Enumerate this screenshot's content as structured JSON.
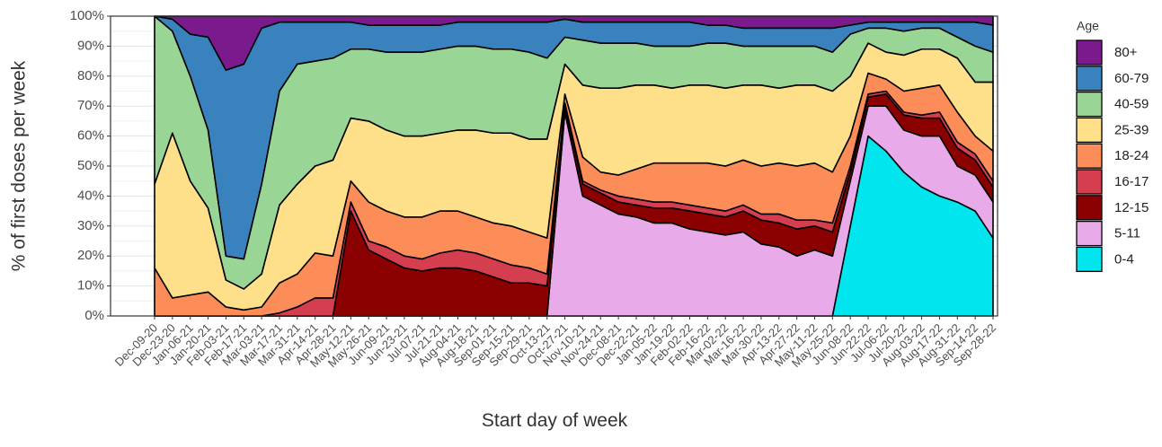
{
  "chart_data": {
    "type": "stacked_area",
    "x_label": "Start day of week",
    "y_label": "% of first doses per week",
    "legend_title": "Age",
    "legend_position": "right",
    "grid": true,
    "ylim": [
      0,
      100
    ],
    "yticks": [
      {
        "value": 0,
        "label": "0%"
      },
      {
        "value": 10,
        "label": "10%"
      },
      {
        "value": 20,
        "label": "20%"
      },
      {
        "value": 30,
        "label": "30%"
      },
      {
        "value": 40,
        "label": "40%"
      },
      {
        "value": 50,
        "label": "50%"
      },
      {
        "value": 60,
        "label": "60%"
      },
      {
        "value": 70,
        "label": "70%"
      },
      {
        "value": 80,
        "label": "80%"
      },
      {
        "value": 90,
        "label": "90%"
      },
      {
        "value": 100,
        "label": "100%"
      }
    ],
    "categories": [
      "Dec-09-20",
      "Dec-23-20",
      "Jan-06-21",
      "Jan-20-21",
      "Feb-03-21",
      "Feb-17-21",
      "Mar-03-21",
      "Mar-17-21",
      "Mar-31-21",
      "Apr-14-21",
      "Apr-28-21",
      "May-12-21",
      "May-26-21",
      "Jun-09-21",
      "Jun-23-21",
      "Jul-07-21",
      "Jul-21-21",
      "Aug-04-21",
      "Aug-18-21",
      "Sep-01-21",
      "Sep-15-21",
      "Sep-29-21",
      "Oct-13-21",
      "Oct-27-21",
      "Nov-10-21",
      "Nov-24-21",
      "Dec-08-21",
      "Dec-22-21",
      "Jan-05-22",
      "Jan-19-22",
      "Feb-02-22",
      "Feb-16-22",
      "Mar-02-22",
      "Mar-16-22",
      "Mar-30-22",
      "Apr-13-22",
      "Apr-27-22",
      "May-11-22",
      "May-25-22",
      "Jun-08-22",
      "Jun-22-22",
      "Jul-06-22",
      "Jul-20-22",
      "Aug-03-22",
      "Aug-17-22",
      "Aug-31-22",
      "Sep-14-22",
      "Sep-28-22"
    ],
    "series": [
      {
        "name": "0-4",
        "color": "#00e5ee",
        "values": [
          0,
          0,
          0,
          0,
          0,
          0,
          0,
          0,
          0,
          0,
          0,
          0,
          0,
          0,
          0,
          0,
          0,
          0,
          0,
          0,
          0,
          0,
          0,
          0,
          0,
          0,
          0,
          0,
          0,
          0,
          0,
          0,
          0,
          0,
          0,
          0,
          0,
          0,
          0,
          30,
          60,
          55,
          48,
          43,
          40,
          38,
          35,
          26
        ]
      },
      {
        "name": "5-11",
        "color": "#e9aaea",
        "values": [
          0,
          0,
          0,
          0,
          0,
          0,
          0,
          0,
          0,
          0,
          0,
          0,
          0,
          0,
          0,
          0,
          0,
          0,
          0,
          0,
          0,
          0,
          0,
          68,
          40,
          37,
          34,
          33,
          31,
          31,
          29,
          28,
          27,
          28,
          24,
          23,
          20,
          22,
          20,
          15,
          10,
          15,
          14,
          17,
          20,
          12,
          12,
          12
        ]
      },
      {
        "name": "12-15",
        "color": "#8b0000",
        "values": [
          0,
          0,
          0,
          0,
          0,
          0,
          0,
          0,
          0,
          0,
          0,
          35,
          22,
          19,
          16,
          15,
          16,
          16,
          15,
          13,
          11,
          11,
          10,
          2,
          4,
          4,
          4,
          4,
          5,
          5,
          6,
          6,
          6,
          7,
          8,
          8,
          9,
          8,
          8,
          3,
          3,
          4,
          5,
          6,
          6,
          6,
          5,
          5
        ]
      },
      {
        "name": "16-17",
        "color": "#d53e4f",
        "values": [
          0,
          0,
          0,
          0,
          0,
          0,
          0,
          1,
          3,
          6,
          6,
          3,
          3,
          4,
          4,
          4,
          5,
          6,
          6,
          6,
          6,
          5,
          4,
          1,
          1,
          1,
          2,
          2,
          2,
          2,
          2,
          2,
          2,
          2,
          2,
          3,
          3,
          2,
          3,
          2,
          1,
          1,
          1,
          1,
          2,
          2,
          2,
          2
        ]
      },
      {
        "name": "18-24",
        "color": "#fc8d59",
        "values": [
          16,
          6,
          7,
          8,
          3,
          2,
          3,
          10,
          11,
          15,
          14,
          7,
          13,
          12,
          13,
          14,
          14,
          13,
          12,
          12,
          13,
          12,
          12,
          3,
          8,
          6,
          7,
          10,
          13,
          13,
          14,
          15,
          15,
          15,
          16,
          17,
          18,
          19,
          17,
          10,
          7,
          4,
          7,
          9,
          9,
          10,
          6,
          10
        ]
      },
      {
        "name": "25-39",
        "color": "#fee08b",
        "values": [
          28,
          55,
          38,
          28,
          9,
          7,
          11,
          26,
          30,
          29,
          32,
          21,
          27,
          27,
          27,
          27,
          26,
          27,
          29,
          30,
          31,
          31,
          33,
          10,
          24,
          28,
          29,
          28,
          26,
          25,
          26,
          26,
          26,
          25,
          27,
          25,
          27,
          26,
          27,
          20,
          10,
          9,
          12,
          13,
          12,
          18,
          18,
          23
        ]
      },
      {
        "name": "40-59",
        "color": "#99d594",
        "values": [
          56,
          34,
          35,
          26,
          8,
          10,
          30,
          38,
          40,
          35,
          34,
          23,
          24,
          26,
          28,
          28,
          28,
          28,
          28,
          28,
          28,
          29,
          27,
          9,
          15,
          15,
          15,
          14,
          13,
          14,
          13,
          14,
          15,
          13,
          13,
          14,
          13,
          13,
          13,
          14,
          5,
          8,
          8,
          7,
          7,
          7,
          12,
          10
        ]
      },
      {
        "name": "60-79",
        "color": "#3a82be",
        "values": [
          0,
          4,
          14,
          31,
          62,
          65,
          52,
          23,
          14,
          13,
          12,
          9,
          8,
          9,
          9,
          9,
          8,
          8,
          8,
          9,
          9,
          10,
          12,
          6,
          6,
          7,
          7,
          7,
          8,
          8,
          8,
          6,
          6,
          6,
          6,
          6,
          6,
          6,
          8,
          3,
          2,
          2,
          3,
          2,
          2,
          5,
          8,
          9
        ]
      },
      {
        "name": "80+",
        "color": "#7b1a8c",
        "values": [
          0,
          1,
          6,
          7,
          18,
          16,
          4,
          2,
          2,
          2,
          2,
          2,
          3,
          3,
          3,
          3,
          3,
          2,
          2,
          2,
          2,
          2,
          2,
          1,
          2,
          2,
          2,
          2,
          2,
          2,
          2,
          3,
          3,
          4,
          4,
          4,
          4,
          4,
          4,
          3,
          2,
          2,
          2,
          2,
          2,
          2,
          2,
          3
        ]
      }
    ]
  }
}
